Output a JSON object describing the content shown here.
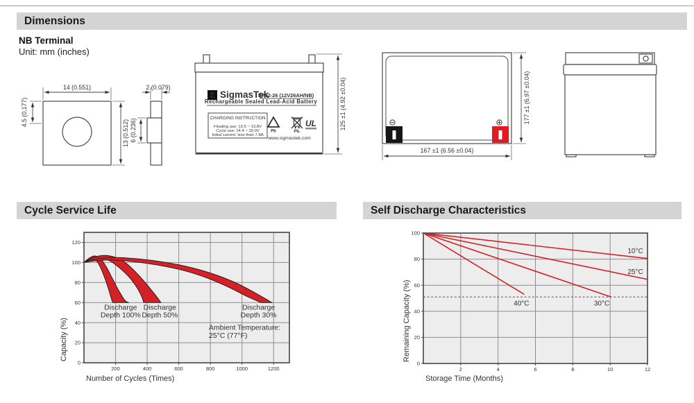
{
  "page": {
    "sections": {
      "dimensions": "Dimensions",
      "cycle_service_life": "Cycle Service Life",
      "self_discharge": "Self Discharge Characteristics"
    },
    "subtitle": "NB Terminal",
    "unit_note": "Unit: mm (inches)"
  },
  "colors": {
    "accent_red": "#d42127",
    "plot_bg": "#eeeded",
    "grid": "#8c8c8c",
    "plot_border": "#4f4f4f",
    "bar_bg": "#d4d4d4",
    "terminal_black": "#161616"
  },
  "dimensions_drawings": {
    "terminal_front": {
      "width": "14 (0.551)",
      "hole_offset": "4.5 (0.177)",
      "height": "13 (0.512)"
    },
    "terminal_side": {
      "thickness": "2 (0.079)",
      "mid_height": "6 (0.236)"
    },
    "battery_front": {
      "height_dim": "125 ±1 (4.92 ±0.04)",
      "label": {
        "logo_sigma": "Σ",
        "brand": "SigmasTek",
        "model": "SP12-26 (12V26AH/NB)",
        "type_line": "Rechargeable Sealed Lead-Acid Battery",
        "charging_title": "CHARGING INSTRUCTION",
        "charging_line1": "Floating use: 13.5 ~ 13.8V",
        "charging_line2": "Cycle use: 14.4 ~ 15.0V",
        "charging_line3": "Initial current: less than 7.8A",
        "pb_recycle": "Pb",
        "pb_bin": "Pb.",
        "ul_mark": "UL",
        "website": "www.sigmastek.com"
      }
    },
    "battery_top": {
      "width_dim": "167 ±1 (6.56 ±0.04)",
      "height_dim": "177 ±1 (6.97 ±0.04)"
    }
  },
  "chart_data": [
    {
      "type": "area",
      "title": "Cycle Service Life",
      "xlabel": "Number of Cycles (Times)",
      "ylabel": "Capacity (%)",
      "xlim": [
        0,
        1300
      ],
      "ylim": [
        0,
        130
      ],
      "xticks": [
        200,
        400,
        600,
        800,
        1000,
        1200
      ],
      "yticks": [
        0,
        20,
        40,
        60,
        80,
        100,
        120
      ],
      "grid": true,
      "bands": [
        {
          "name": "Discharge Depth 100%",
          "label_lines": [
            "Discharge",
            "Depth 100%"
          ],
          "label_x": 232,
          "label_y": 53,
          "upper": [
            [
              0,
              100
            ],
            [
              30,
              104
            ],
            [
              65,
              106.5
            ],
            [
              100,
              104.5
            ],
            [
              140,
              96
            ],
            [
              180,
              84
            ],
            [
              220,
              72
            ],
            [
              260,
              62
            ],
            [
              285,
              60
            ]
          ],
          "lower": [
            [
              0,
              100
            ],
            [
              25,
              102.5
            ],
            [
              55,
              104
            ],
            [
              85,
              100.5
            ],
            [
              110,
              93
            ],
            [
              135,
              83
            ],
            [
              158,
              72
            ],
            [
              175,
              63
            ],
            [
              182,
              60
            ]
          ]
        },
        {
          "name": "Discharge Depth 50%",
          "label_lines": [
            "Discharge",
            "Depth 50%"
          ],
          "label_x": 480,
          "label_y": 53,
          "upper": [
            [
              0,
              100
            ],
            [
              60,
              105
            ],
            [
              130,
              107
            ],
            [
              200,
              105
            ],
            [
              265,
              99.5
            ],
            [
              330,
              90
            ],
            [
              390,
              79.5
            ],
            [
              450,
              68
            ],
            [
              487,
              60
            ]
          ],
          "lower": [
            [
              0,
              100
            ],
            [
              50,
              102.5
            ],
            [
              110,
              104
            ],
            [
              165,
              101.5
            ],
            [
              225,
              94.5
            ],
            [
              285,
              85.5
            ],
            [
              335,
              75
            ],
            [
              365,
              66
            ],
            [
              378,
              60
            ]
          ]
        },
        {
          "name": "Discharge Depth 30%",
          "label_lines": [
            "Discharge",
            "Depth 30%"
          ],
          "label_x": 1105,
          "label_y": 53,
          "upper": [
            [
              0,
              100
            ],
            [
              80,
              103.5
            ],
            [
              200,
              105
            ],
            [
              350,
              103.5
            ],
            [
              500,
              100.5
            ],
            [
              650,
              96
            ],
            [
              800,
              89.5
            ],
            [
              950,
              80.5
            ],
            [
              1080,
              70
            ],
            [
              1190,
              60
            ]
          ],
          "lower": [
            [
              0,
              100
            ],
            [
              70,
              101.5
            ],
            [
              180,
              102.5
            ],
            [
              330,
              100.5
            ],
            [
              480,
              97
            ],
            [
              630,
              92
            ],
            [
              780,
              84.5
            ],
            [
              920,
              75
            ],
            [
              1040,
              65.5
            ],
            [
              1120,
              60
            ]
          ]
        }
      ],
      "annotation": {
        "lines": [
          "Ambient Temperature:",
          "25°C (77°F)"
        ],
        "x": 790,
        "y": 33
      }
    },
    {
      "type": "line",
      "title": "Self Discharge Characteristics",
      "xlabel": "Storage Time (Months)",
      "ylabel": "Remaining Capacity (%)",
      "xlim": [
        0,
        12
      ],
      "ylim": [
        0,
        100
      ],
      "xticks": [
        2,
        4,
        6,
        8,
        10,
        12
      ],
      "yticks": [
        0,
        20,
        40,
        60,
        80,
        100
      ],
      "grid": true,
      "series": [
        {
          "name": "10°C",
          "points": [
            [
              0,
              100
            ],
            [
              12,
              80.5
            ]
          ],
          "label_x": 11.35,
          "label_y": 84.5
        },
        {
          "name": "25°C",
          "points": [
            [
              0,
              100
            ],
            [
              12,
              64.5
            ]
          ],
          "label_x": 11.35,
          "label_y": 68.5
        },
        {
          "name": "30°C",
          "points": [
            [
              0,
              100
            ],
            [
              10.05,
              51
            ]
          ],
          "label_x": 9.55,
          "label_y": 44.5
        },
        {
          "name": "40°C",
          "points": [
            [
              0,
              100
            ],
            [
              5.4,
              53
            ]
          ],
          "label_x": 5.25,
          "label_y": 44.5
        }
      ],
      "reference_line": {
        "y": 51,
        "style": "dashed"
      }
    }
  ]
}
